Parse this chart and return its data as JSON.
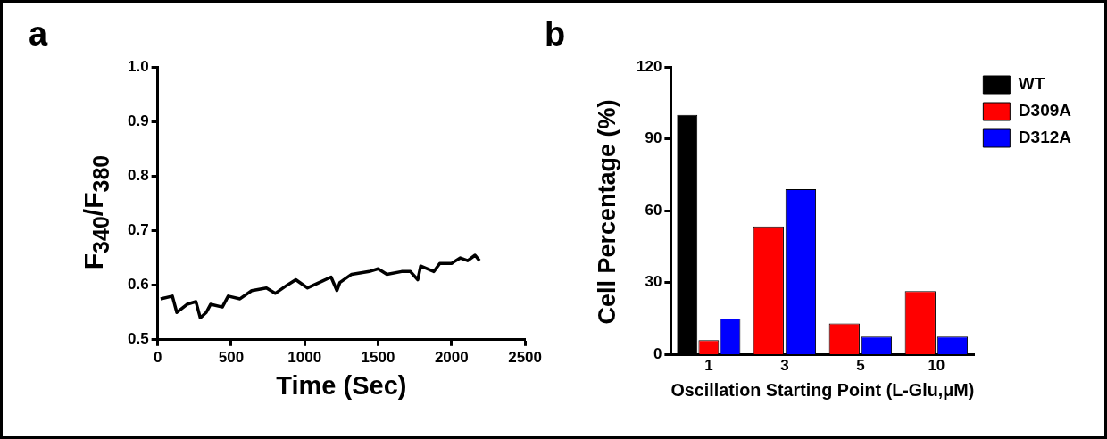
{
  "chart_data": [
    {
      "type": "line",
      "title": "a",
      "xlabel": "Time (Sec)",
      "ylabel": "F$_{340}$/F$_{380}$",
      "xlim": [
        0,
        2500
      ],
      "xticks": [
        0,
        500,
        1000,
        1500,
        2000,
        2500
      ],
      "ylim": [
        0.5,
        1.0
      ],
      "yticks": [
        {
          "value": 0.5,
          "label": "0.5"
        },
        {
          "value": 0.6,
          "label": "0.6"
        },
        {
          "value": 0.7,
          "label": "0.7"
        },
        {
          "value": 0.8,
          "label": "0.8"
        },
        {
          "value": 0.9,
          "label": "0.9"
        },
        {
          "value": 1.0,
          "label": "1.0"
        }
      ],
      "grid": false,
      "marker": "none",
      "series": [
        {
          "color": "#000000",
          "x": [
            20,
            100,
            130,
            200,
            260,
            290,
            330,
            360,
            440,
            480,
            560,
            640,
            740,
            800,
            880,
            940,
            1020,
            1100,
            1180,
            1220,
            1240,
            1320,
            1440,
            1500,
            1560,
            1660,
            1720,
            1770,
            1790,
            1880,
            1920,
            2000,
            2060,
            2110,
            2160,
            2190
          ],
          "values": [
            0.575,
            0.58,
            0.55,
            0.565,
            0.57,
            0.54,
            0.55,
            0.565,
            0.56,
            0.58,
            0.575,
            0.59,
            0.595,
            0.585,
            0.6,
            0.61,
            0.595,
            0.605,
            0.615,
            0.59,
            0.605,
            0.62,
            0.625,
            0.63,
            0.62,
            0.625,
            0.625,
            0.61,
            0.635,
            0.625,
            0.64,
            0.64,
            0.65,
            0.645,
            0.655,
            0.645
          ]
        }
      ]
    },
    {
      "type": "bar",
      "title": "b",
      "xlabel": "Oscillation Starting Point (L-Glu,μM)",
      "ylabel": "Cell Percentage (%)",
      "categories": [
        "1",
        "3",
        "5",
        "10"
      ],
      "ylim": [
        0,
        120
      ],
      "yticks": [
        0,
        30,
        60,
        90,
        120
      ],
      "grid": false,
      "legend": "top right",
      "series": [
        {
          "name": "WT",
          "color": "#000000",
          "values": [
            100,
            null,
            null,
            null
          ]
        },
        {
          "name": "D309A",
          "color": "#ff0000",
          "values": [
            6,
            53.5,
            13,
            26.5
          ]
        },
        {
          "name": "D312A",
          "color": "#0000ff",
          "values": [
            15,
            69,
            7.5,
            7.5
          ]
        }
      ]
    }
  ]
}
